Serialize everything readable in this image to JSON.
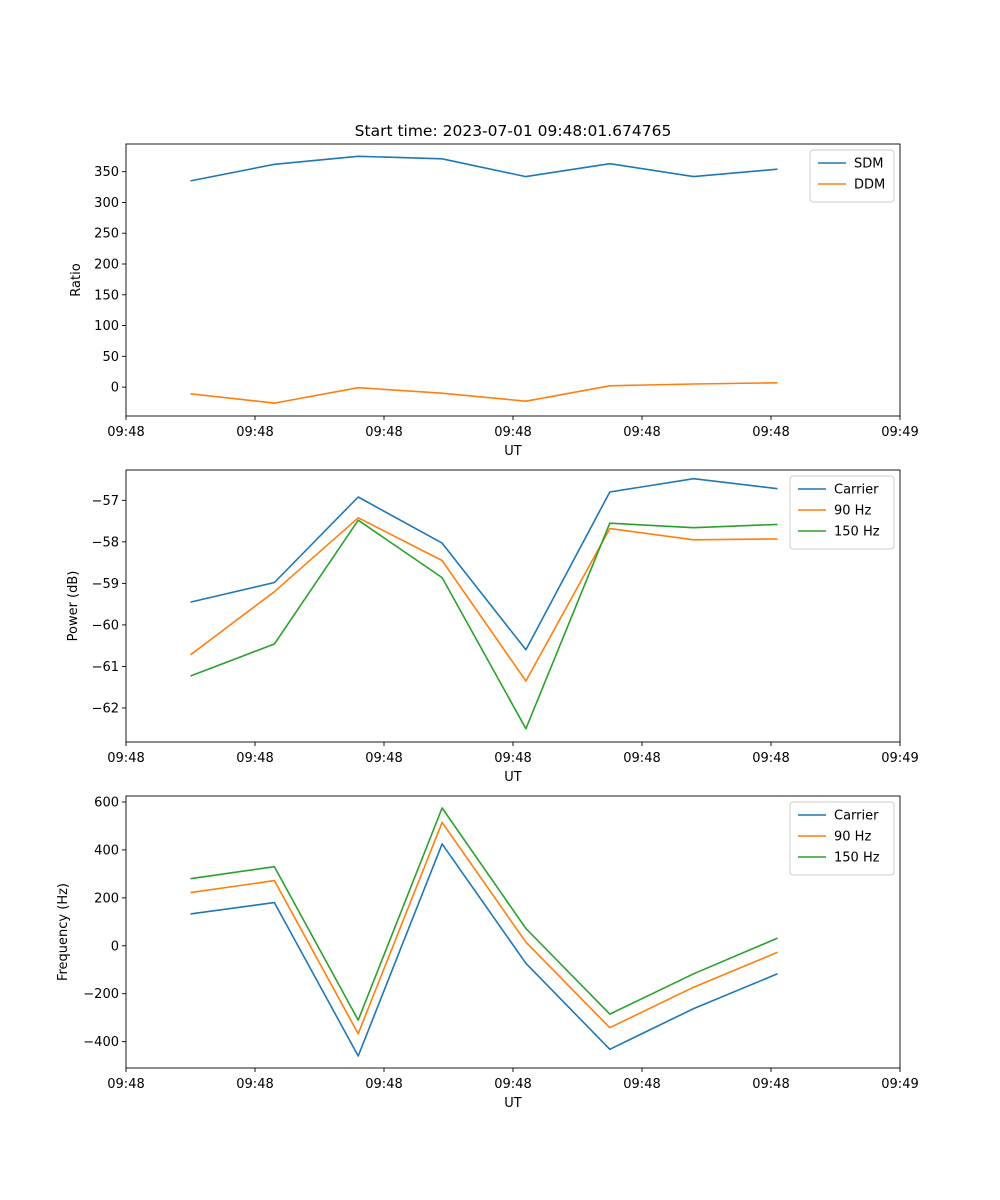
{
  "figure_title": "Start time: 2023-07-01 09:48:01.674765",
  "colors": {
    "blue": "#1f77b4",
    "orange": "#ff7f0e",
    "green": "#2ca02c",
    "axes": "#000000",
    "legend_border": "#cccccc"
  },
  "chart_data": [
    {
      "type": "line",
      "title": "Start time: 2023-07-01 09:48:01.674765",
      "xlabel": "UT",
      "ylabel": "Ratio",
      "xlim": [
        0,
        12
      ],
      "ylim": [
        -47,
        395
      ],
      "x_tick_positions": [
        0,
        2,
        4,
        6,
        8,
        10,
        12
      ],
      "x_tick_labels": [
        "09:48",
        "09:48",
        "09:48",
        "09:48",
        "09:48",
        "09:48",
        "09:49"
      ],
      "y_ticks": [
        0,
        50,
        100,
        150,
        200,
        250,
        300,
        350
      ],
      "y_tick_labels": [
        "0",
        "50",
        "100",
        "150",
        "200",
        "250",
        "300",
        "350"
      ],
      "x": [
        1,
        2.3,
        3.6,
        4.9,
        6.2,
        7.5,
        8.8,
        10.1
      ],
      "series": [
        {
          "name": "SDM",
          "color": "#1f77b4",
          "values": [
            335,
            362,
            375,
            371,
            342,
            363,
            342,
            354
          ]
        },
        {
          "name": "DDM",
          "color": "#ff7f0e",
          "values": [
            -11,
            -26,
            -1,
            -10,
            -23,
            2,
            5,
            7
          ]
        }
      ],
      "legend": "top-right"
    },
    {
      "type": "line",
      "xlabel": "UT",
      "ylabel": "Power (dB)",
      "xlim": [
        0,
        12
      ],
      "ylim": [
        -62.82,
        -56.27
      ],
      "x_tick_positions": [
        0,
        2,
        4,
        6,
        8,
        10,
        12
      ],
      "x_tick_labels": [
        "09:48",
        "09:48",
        "09:48",
        "09:48",
        "09:48",
        "09:48",
        "09:49"
      ],
      "y_ticks": [
        -62,
        -61,
        -60,
        -59,
        -58,
        -57
      ],
      "y_tick_labels": [
        "−62",
        "−61",
        "−60",
        "−59",
        "−58",
        "−57"
      ],
      "x": [
        1,
        2.3,
        3.6,
        4.9,
        6.2,
        7.5,
        8.8,
        10.1
      ],
      "series": [
        {
          "name": "Carrier",
          "color": "#1f77b4",
          "values": [
            -59.45,
            -58.98,
            -56.92,
            -58.03,
            -60.6,
            -56.8,
            -56.48,
            -56.72
          ]
        },
        {
          "name": "90 Hz",
          "color": "#ff7f0e",
          "values": [
            -60.72,
            -59.2,
            -57.42,
            -58.45,
            -61.35,
            -57.68,
            -57.95,
            -57.93
          ]
        },
        {
          "name": "150 Hz",
          "color": "#2ca02c",
          "values": [
            -61.23,
            -60.46,
            -57.48,
            -58.86,
            -62.5,
            -57.55,
            -57.66,
            -57.58
          ]
        }
      ],
      "legend": "top-right"
    },
    {
      "type": "line",
      "xlabel": "UT",
      "ylabel": "Frequency (Hz)",
      "xlim": [
        0,
        12
      ],
      "ylim": [
        -510,
        625
      ],
      "x_tick_positions": [
        0,
        2,
        4,
        6,
        8,
        10,
        12
      ],
      "x_tick_labels": [
        "09:48",
        "09:48",
        "09:48",
        "09:48",
        "09:48",
        "09:48",
        "09:49"
      ],
      "y_ticks": [
        -400,
        -200,
        0,
        200,
        400,
        600
      ],
      "y_tick_labels": [
        "−400",
        "−200",
        "0",
        "200",
        "400",
        "600"
      ],
      "x": [
        1,
        2.3,
        3.6,
        4.9,
        6.2,
        7.5,
        8.8,
        10.1
      ],
      "series": [
        {
          "name": "Carrier",
          "color": "#1f77b4",
          "values": [
            133,
            180,
            -460,
            425,
            -73,
            -432,
            -262,
            -117
          ]
        },
        {
          "name": "90 Hz",
          "color": "#ff7f0e",
          "values": [
            222,
            272,
            -367,
            515,
            15,
            -342,
            -173,
            -27
          ]
        },
        {
          "name": "150 Hz",
          "color": "#2ca02c",
          "values": [
            280,
            330,
            -310,
            575,
            72,
            -285,
            -117,
            32
          ]
        }
      ],
      "legend": "top-right"
    }
  ]
}
